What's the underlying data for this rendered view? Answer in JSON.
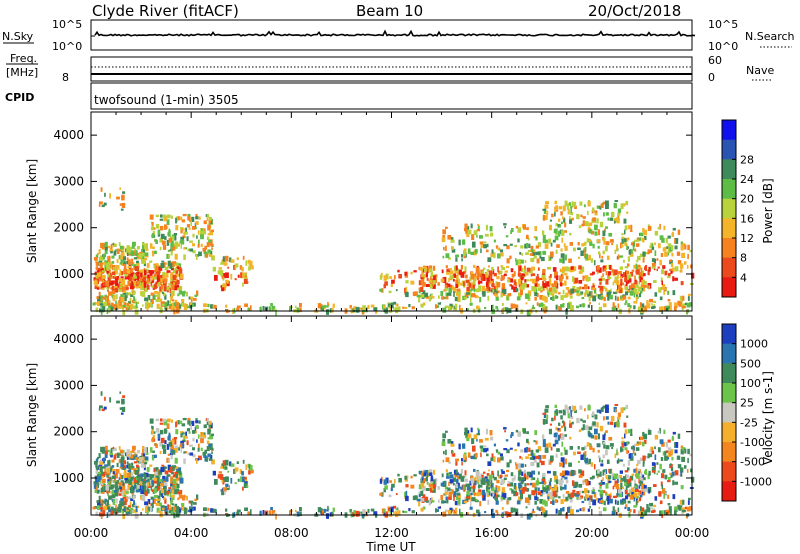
{
  "header": {
    "station": "Clyde River (fitACF)",
    "beam": "Beam 10",
    "date": "20/Oct/2018"
  },
  "strips": {
    "nsky": {
      "label": "N.Sky",
      "left_top": "10^5",
      "left_bottom": "10^0",
      "right_top": "10^5",
      "right_bottom": "10^0",
      "right_label": "N.Search"
    },
    "freq": {
      "label_line1": "Freq.",
      "label_line2": "[MHz]",
      "left_tick": "8",
      "right_top": "60",
      "right_bottom": "0",
      "right_label": "Nave"
    },
    "cpid": {
      "label": "CPID",
      "text": "twofsound (1-min) 3505"
    }
  },
  "chart_data": [
    {
      "type": "heatmap",
      "name": "power-panel",
      "ylabel": "Slant Range [km]",
      "xlabel": "",
      "xlim_hours": [
        0,
        24
      ],
      "ylim": [
        200,
        4500
      ],
      "y_ticks": [
        1000,
        2000,
        3000,
        4000
      ],
      "colorbar": {
        "label": "Power [dB]",
        "ticks": [
          "4",
          "8",
          "12",
          "16",
          "20",
          "24",
          "28"
        ],
        "colors": [
          "#1010ee",
          "#2a54b2",
          "#3f8a5a",
          "#5cbc46",
          "#b7d23a",
          "#f3b42a",
          "#f6821f",
          "#ec4a1d",
          "#e81a12"
        ]
      }
    },
    {
      "type": "heatmap",
      "name": "velocity-panel",
      "ylabel": "Slant Range [km]",
      "xlabel": "Time UT",
      "xlim_hours": [
        0,
        24
      ],
      "ylim": [
        200,
        4500
      ],
      "y_ticks": [
        1000,
        2000,
        3000,
        4000
      ],
      "x_ticks": [
        "00:00",
        "04:00",
        "08:00",
        "12:00",
        "16:00",
        "20:00",
        "00:00"
      ],
      "colorbar": {
        "label": "Velocity [m s-1]",
        "ticks": [
          "1000",
          "500",
          "100",
          "25",
          "-25",
          "-100",
          "-500",
          "-1000"
        ],
        "colors": [
          "#1c3fbf",
          "#2a74b0",
          "#3f8a5a",
          "#6cc44a",
          "#c8c8c0",
          "#f4b02c",
          "#f3861f",
          "#ec4a1d",
          "#e61b12"
        ]
      }
    }
  ]
}
